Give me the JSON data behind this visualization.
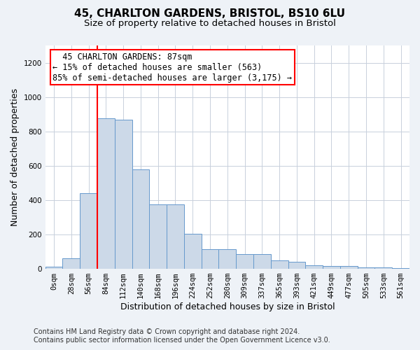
{
  "title": "45, CHARLTON GARDENS, BRISTOL, BS10 6LU",
  "subtitle": "Size of property relative to detached houses in Bristol",
  "xlabel": "Distribution of detached houses by size in Bristol",
  "ylabel": "Number of detached properties",
  "bar_color": "#ccd9e8",
  "bar_edge_color": "#6699cc",
  "bar_heights": [
    12,
    63,
    440,
    875,
    870,
    580,
    375,
    375,
    205,
    115,
    115,
    85,
    85,
    50,
    42,
    22,
    18,
    18,
    10,
    8,
    5
  ],
  "bin_labels": [
    "0sqm",
    "28sqm",
    "56sqm",
    "84sqm",
    "112sqm",
    "140sqm",
    "168sqm",
    "196sqm",
    "224sqm",
    "252sqm",
    "280sqm",
    "309sqm",
    "337sqm",
    "365sqm",
    "393sqm",
    "421sqm",
    "449sqm",
    "477sqm",
    "505sqm",
    "533sqm",
    "561sqm"
  ],
  "ylim": [
    0,
    1300
  ],
  "yticks": [
    0,
    200,
    400,
    600,
    800,
    1000,
    1200
  ],
  "red_line_x": 3,
  "annotation_text": "  45 CHARLTON GARDENS: 87sqm\n← 15% of detached houses are smaller (563)\n85% of semi-detached houses are larger (3,175) →",
  "footer_line1": "Contains HM Land Registry data © Crown copyright and database right 2024.",
  "footer_line2": "Contains public sector information licensed under the Open Government Licence v3.0.",
  "background_color": "#eef2f7",
  "plot_background_color": "#ffffff",
  "grid_color": "#c8d0dc",
  "title_fontsize": 11,
  "subtitle_fontsize": 9.5,
  "axis_label_fontsize": 9,
  "tick_fontsize": 7.5,
  "annotation_fontsize": 8.5,
  "footer_fontsize": 7
}
